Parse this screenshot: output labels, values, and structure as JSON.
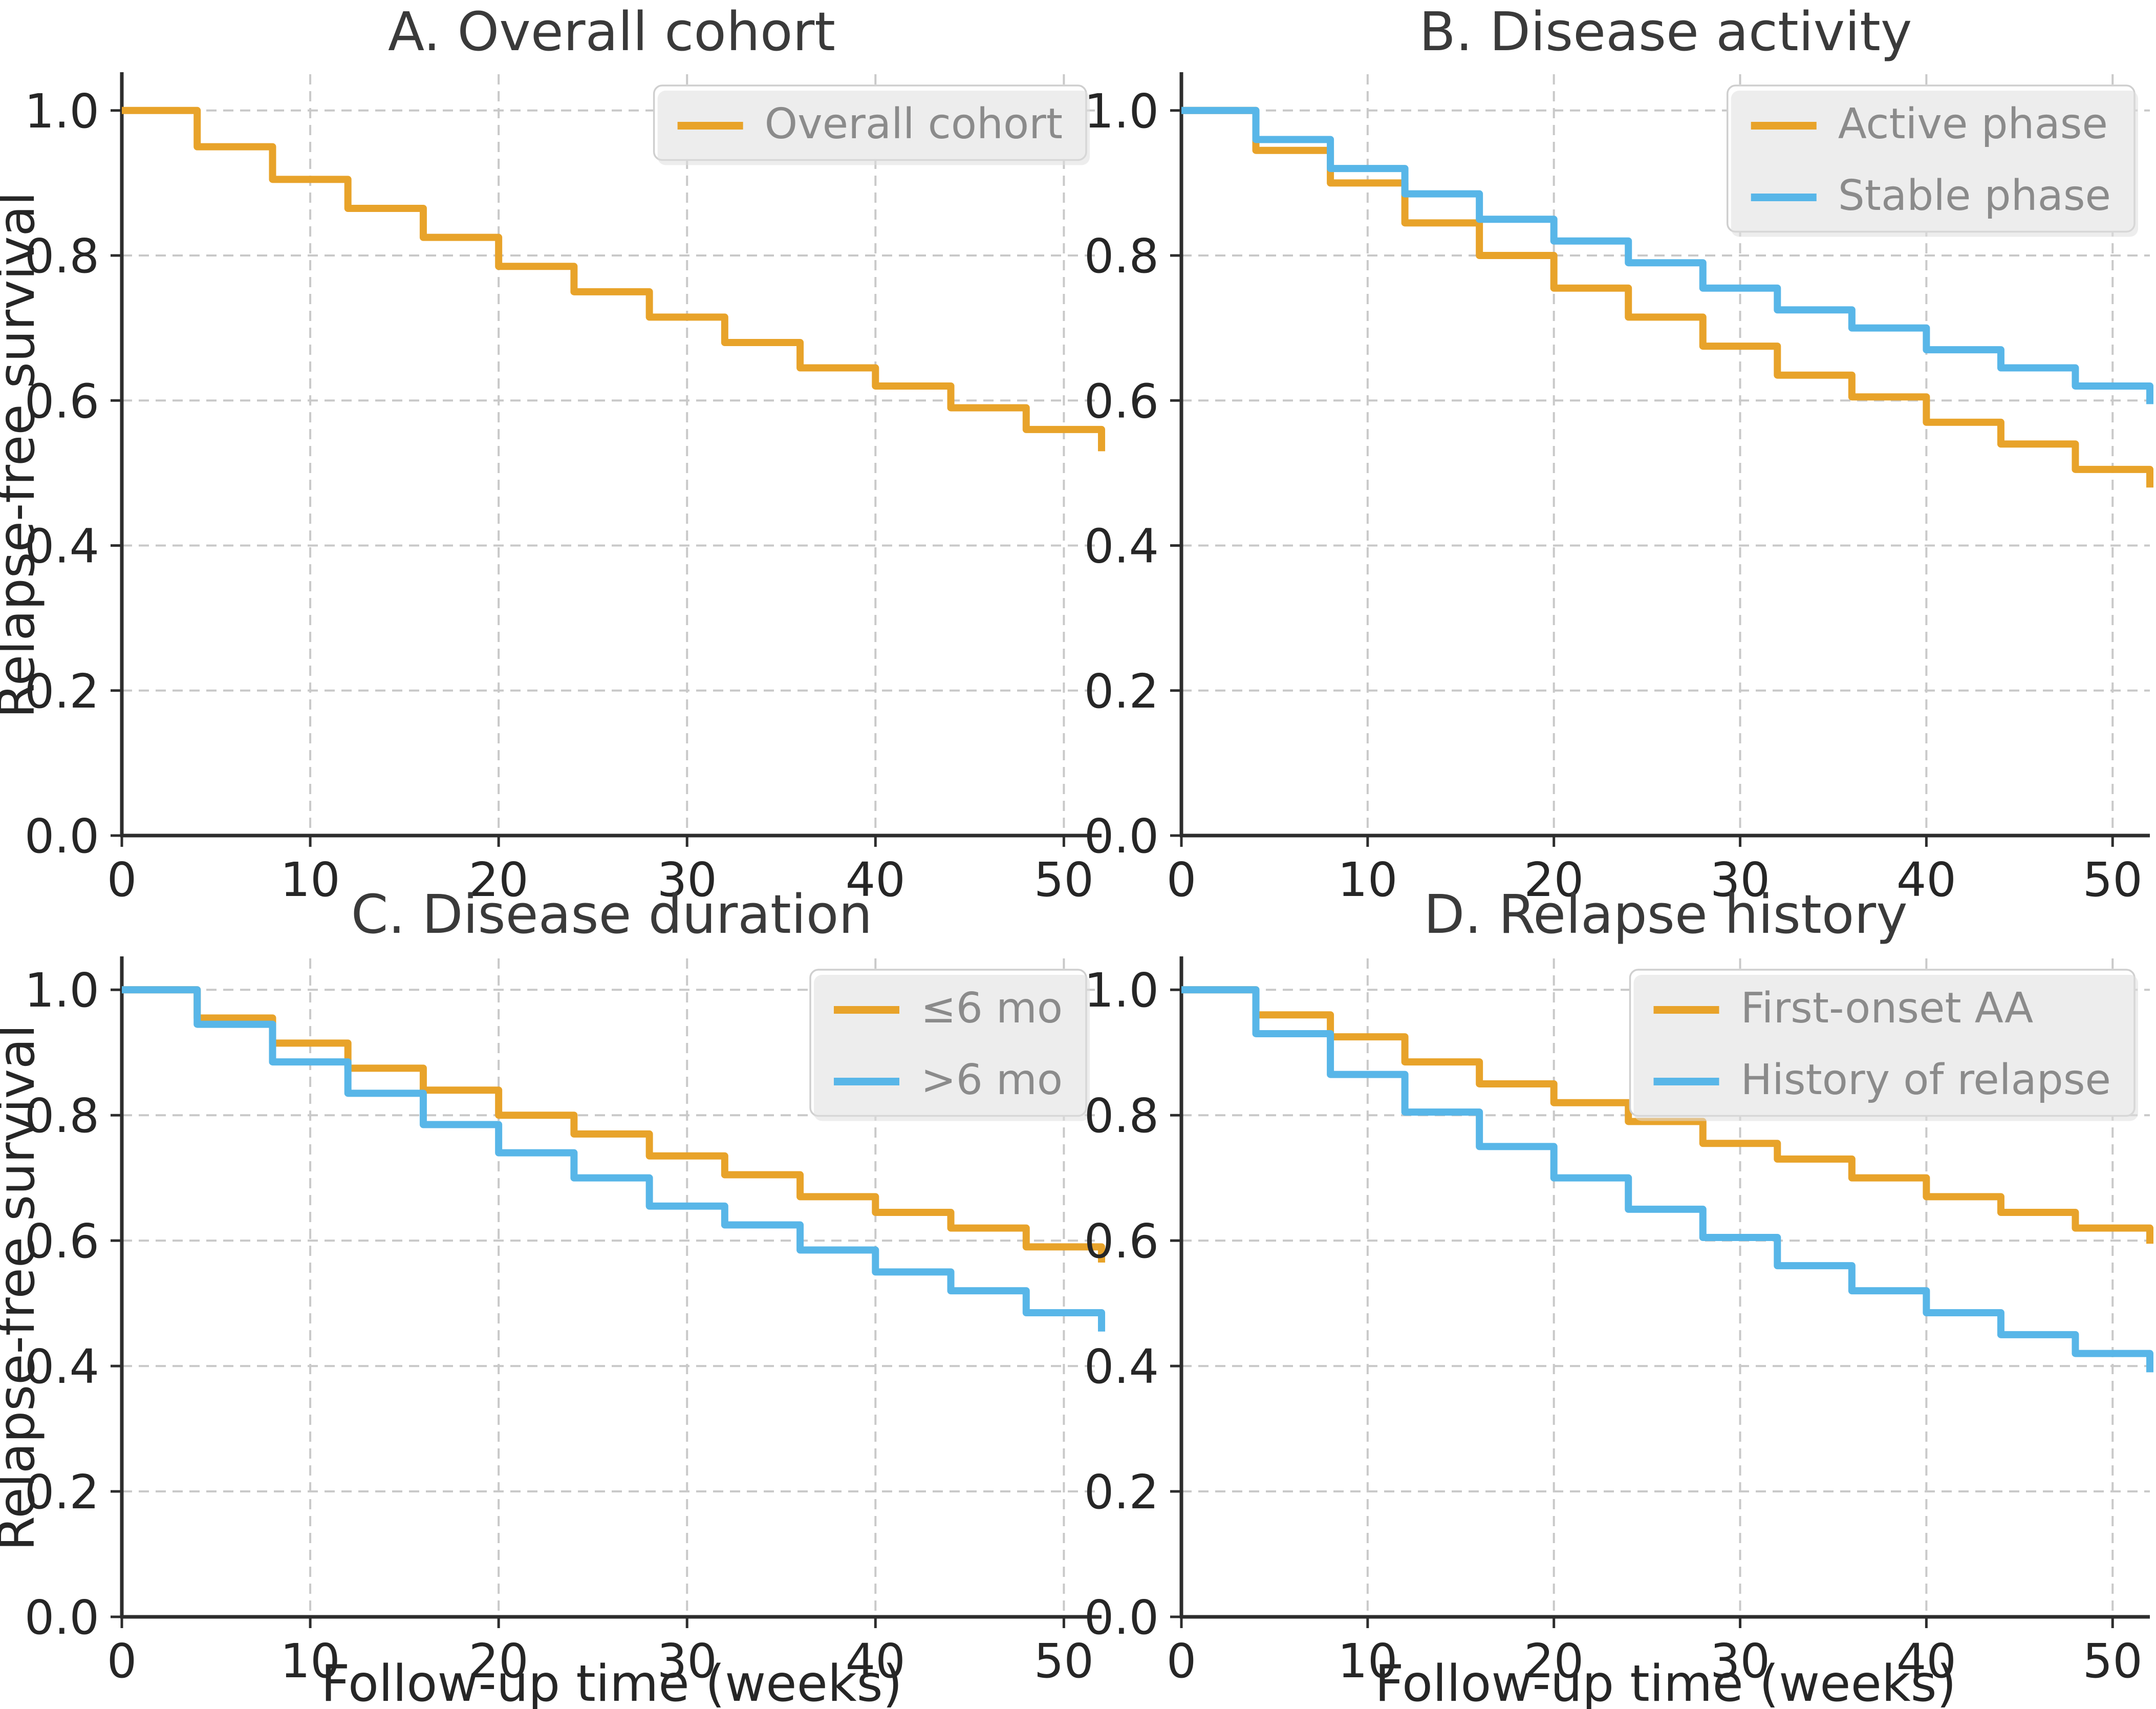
{
  "figure": {
    "background": "#ffffff",
    "tick_color": "#262626",
    "title_color": "#3a3a3a",
    "grid_color": "#c9c9c9",
    "spine_color": "#2d2d2d",
    "legend_border_color": "#cfcfcf",
    "legend_background": "#ffffff",
    "xlabel": "Follow-up time (weeks)",
    "ylabel": "Relapse-free survival",
    "accent_orange": "#E8A32A",
    "accent_blue": "#58B6E8"
  },
  "chart_data": [
    {
      "type": "line",
      "style": "step-post",
      "panel": "A",
      "title": "A. Overall cohort",
      "xlabel": "",
      "ylabel": "Relapse-free survival",
      "x": [
        0,
        4,
        8,
        12,
        16,
        20,
        24,
        28,
        32,
        36,
        40,
        44,
        48,
        52
      ],
      "xlim": [
        0,
        52
      ],
      "ylim": [
        0,
        1.05
      ],
      "xticks": [
        "0",
        "10",
        "20",
        "30",
        "40",
        "50"
      ],
      "xtick_values": [
        0,
        10,
        20,
        30,
        40,
        50
      ],
      "yticks": [
        "0.0",
        "0.2",
        "0.4",
        "0.6",
        "0.8",
        "1.0"
      ],
      "ytick_values": [
        0,
        0.2,
        0.4,
        0.6,
        0.8,
        1.0
      ],
      "grid": true,
      "legend_position": "upper right",
      "series": [
        {
          "name": "Overall cohort",
          "color": "#E8A32A",
          "values": [
            1.0,
            0.95,
            0.905,
            0.865,
            0.825,
            0.785,
            0.75,
            0.715,
            0.68,
            0.645,
            0.62,
            0.59,
            0.56,
            0.53
          ]
        }
      ]
    },
    {
      "type": "line",
      "style": "step-post",
      "panel": "B",
      "title": "B. Disease activity",
      "xlabel": "",
      "ylabel": "",
      "x": [
        0,
        4,
        8,
        12,
        16,
        20,
        24,
        28,
        32,
        36,
        40,
        44,
        48,
        52
      ],
      "xlim": [
        0,
        52
      ],
      "ylim": [
        0,
        1.05
      ],
      "xticks": [
        "0",
        "10",
        "20",
        "30",
        "40",
        "50"
      ],
      "xtick_values": [
        0,
        10,
        20,
        30,
        40,
        50
      ],
      "yticks": [
        "0.0",
        "0.2",
        "0.4",
        "0.6",
        "0.8",
        "1.0"
      ],
      "ytick_values": [
        0,
        0.2,
        0.4,
        0.6,
        0.8,
        1.0
      ],
      "grid": true,
      "legend_position": "upper right",
      "series": [
        {
          "name": "Active phase",
          "color": "#E8A32A",
          "values": [
            1.0,
            0.945,
            0.9,
            0.845,
            0.8,
            0.755,
            0.715,
            0.675,
            0.635,
            0.605,
            0.57,
            0.54,
            0.505,
            0.48
          ]
        },
        {
          "name": "Stable phase",
          "color": "#58B6E8",
          "values": [
            1.0,
            0.96,
            0.92,
            0.885,
            0.85,
            0.82,
            0.79,
            0.755,
            0.725,
            0.7,
            0.67,
            0.645,
            0.62,
            0.595
          ]
        }
      ]
    },
    {
      "type": "line",
      "style": "step-post",
      "panel": "C",
      "title": "C. Disease duration",
      "xlabel": "Follow-up time (weeks)",
      "ylabel": "Relapse-free survival",
      "x": [
        0,
        4,
        8,
        12,
        16,
        20,
        24,
        28,
        32,
        36,
        40,
        44,
        48,
        52
      ],
      "xlim": [
        0,
        52
      ],
      "ylim": [
        0,
        1.05
      ],
      "xticks": [
        "0",
        "10",
        "20",
        "30",
        "40",
        "50"
      ],
      "xtick_values": [
        0,
        10,
        20,
        30,
        40,
        50
      ],
      "yticks": [
        "0.0",
        "0.2",
        "0.4",
        "0.6",
        "0.8",
        "1.0"
      ],
      "ytick_values": [
        0,
        0.2,
        0.4,
        0.6,
        0.8,
        1.0
      ],
      "grid": true,
      "legend_position": "upper right",
      "series": [
        {
          "name": "≤6 mo",
          "color": "#E8A32A",
          "values": [
            1.0,
            0.955,
            0.915,
            0.875,
            0.84,
            0.8,
            0.77,
            0.735,
            0.705,
            0.67,
            0.645,
            0.62,
            0.59,
            0.565
          ]
        },
        {
          "name": ">6 mo",
          "color": "#58B6E8",
          "values": [
            1.0,
            0.945,
            0.885,
            0.835,
            0.785,
            0.74,
            0.7,
            0.655,
            0.625,
            0.585,
            0.55,
            0.52,
            0.485,
            0.455
          ]
        }
      ]
    },
    {
      "type": "line",
      "style": "step-post",
      "panel": "D",
      "title": "D. Relapse history",
      "xlabel": "Follow-up time (weeks)",
      "ylabel": "",
      "x": [
        0,
        4,
        8,
        12,
        16,
        20,
        24,
        28,
        32,
        36,
        40,
        44,
        48,
        52
      ],
      "xlim": [
        0,
        52
      ],
      "ylim": [
        0,
        1.05
      ],
      "xticks": [
        "0",
        "10",
        "20",
        "30",
        "40",
        "50"
      ],
      "xtick_values": [
        0,
        10,
        20,
        30,
        40,
        50
      ],
      "yticks": [
        "0.0",
        "0.2",
        "0.4",
        "0.6",
        "0.8",
        "1.0"
      ],
      "ytick_values": [
        0,
        0.2,
        0.4,
        0.6,
        0.8,
        1.0
      ],
      "grid": true,
      "legend_position": "upper right",
      "series": [
        {
          "name": "First-onset AA",
          "color": "#E8A32A",
          "values": [
            1.0,
            0.96,
            0.925,
            0.885,
            0.85,
            0.82,
            0.79,
            0.755,
            0.73,
            0.7,
            0.67,
            0.645,
            0.62,
            0.595
          ]
        },
        {
          "name": "History of relapse",
          "color": "#58B6E8",
          "values": [
            1.0,
            0.93,
            0.865,
            0.805,
            0.75,
            0.7,
            0.65,
            0.605,
            0.56,
            0.52,
            0.485,
            0.45,
            0.42,
            0.39
          ]
        }
      ]
    }
  ]
}
